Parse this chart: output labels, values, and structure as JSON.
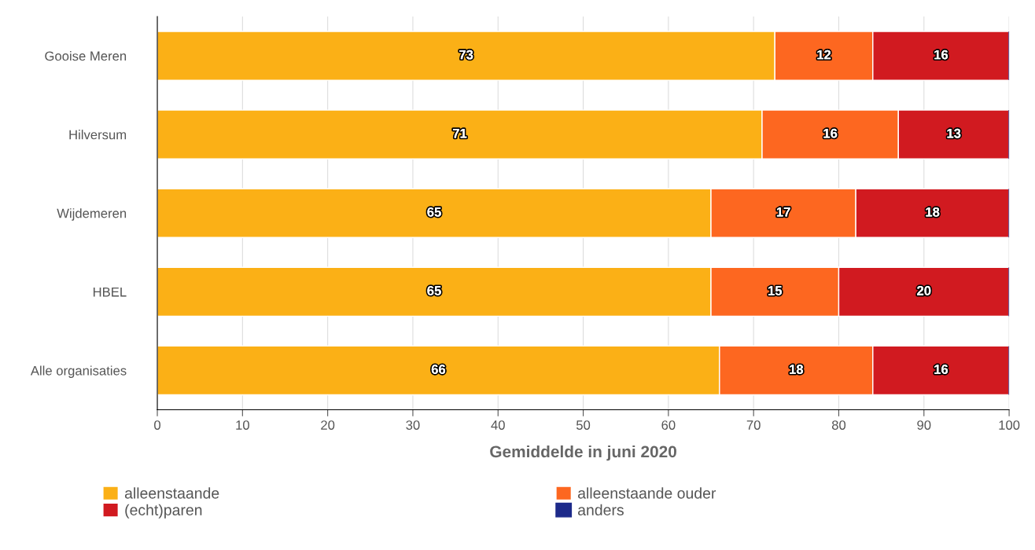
{
  "chart_data": {
    "type": "bar",
    "orientation": "horizontal",
    "stacked": true,
    "xlabel": "Gemiddelde in juni 2020",
    "categories": [
      "Gooise Meren",
      "Hilversum",
      "Wijdemeren",
      "HBEL",
      "Alle organisaties"
    ],
    "series": [
      {
        "name": "alleenstaande",
        "color": "#fbb016",
        "values": [
          72.5,
          71,
          65,
          65,
          66
        ],
        "value_labels": [
          "73",
          "71",
          "65",
          "65",
          "66"
        ]
      },
      {
        "name": "alleenstaande ouder",
        "color": "#fd6720",
        "values": [
          11.5,
          16,
          17,
          15,
          18
        ],
        "value_labels": [
          "12",
          "16",
          "17",
          "15",
          "18"
        ]
      },
      {
        "name": "(echt)paren",
        "color": "#d11a20",
        "values": [
          16,
          13,
          18,
          20,
          16
        ],
        "value_labels": [
          "16",
          "13",
          "18",
          "20",
          "16"
        ]
      },
      {
        "name": "anders",
        "color": "#1d2a8a",
        "values": [
          0,
          0,
          0,
          0,
          0
        ],
        "value_labels": [
          null,
          null,
          null,
          null,
          null
        ]
      }
    ],
    "xlim": [
      0,
      100
    ],
    "xticks": [
      0,
      10,
      20,
      30,
      40,
      50,
      60,
      70,
      80,
      90,
      100
    ],
    "grid": "x",
    "legend": "bottom"
  }
}
